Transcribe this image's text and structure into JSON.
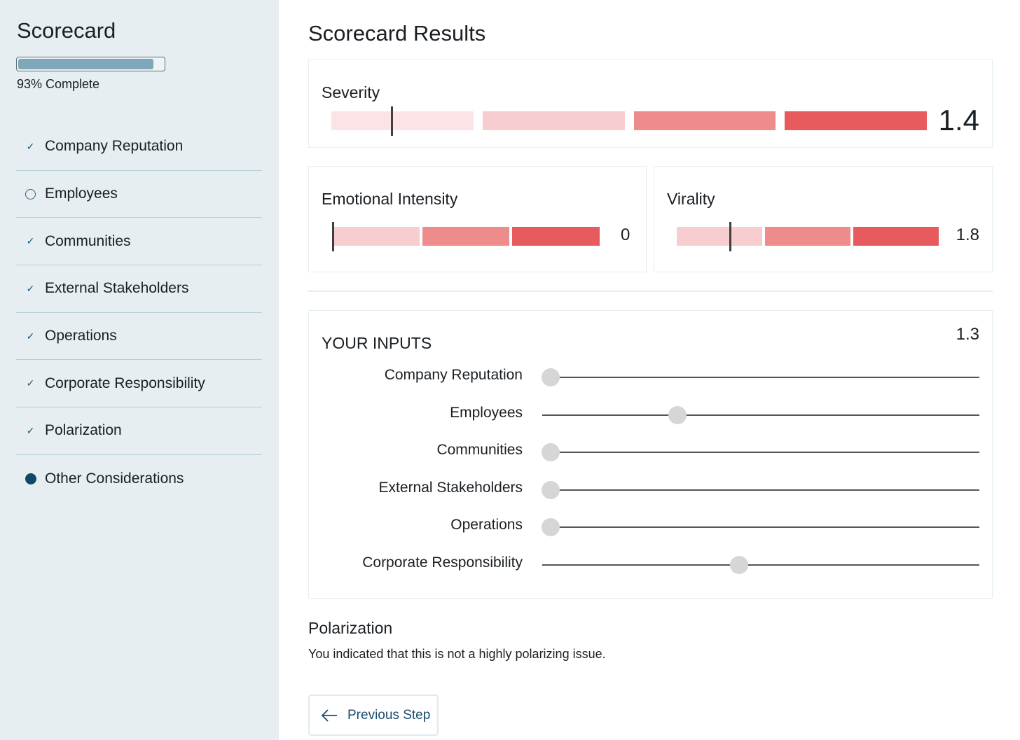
{
  "sidebar": {
    "title": "Scorecard",
    "progress_percent": 93,
    "progress_label": "93% Complete",
    "items": [
      {
        "label": "Company Reputation",
        "status": "done"
      },
      {
        "label": "Employees",
        "status": "incomplete"
      },
      {
        "label": "Communities",
        "status": "done"
      },
      {
        "label": "External Stakeholders",
        "status": "done"
      },
      {
        "label": "Operations",
        "status": "done"
      },
      {
        "label": "Corporate Responsibility",
        "status": "done"
      },
      {
        "label": "Polarization",
        "status": "done"
      },
      {
        "label": "Other Considerations",
        "status": "current"
      }
    ]
  },
  "main": {
    "title": "Scorecard Results",
    "severity": {
      "label": "Severity",
      "value": "1.4",
      "marker_percent": 10
    },
    "emotional_intensity": {
      "label": "Emotional Intensity",
      "value": "0",
      "marker_percent": 0
    },
    "virality": {
      "label": "Virality",
      "value": "1.8",
      "marker_percent": 20
    },
    "scale_colors": [
      "#fce4e6",
      "#f7cdd0",
      "#ee8c8c",
      "#e75b5e"
    ],
    "inputs": {
      "heading": "YOUR INPUTS",
      "value": "1.3",
      "sliders": [
        {
          "label": "Company Reputation",
          "percent": 2
        },
        {
          "label": "Employees",
          "percent": 31
        },
        {
          "label": "Communities",
          "percent": 2
        },
        {
          "label": "External Stakeholders",
          "percent": 2
        },
        {
          "label": "Operations",
          "percent": 2
        },
        {
          "label": "Corporate Responsibility",
          "percent": 45
        }
      ]
    },
    "polarization": {
      "title": "Polarization",
      "text": "You indicated that this is not a highly polarizing issue."
    },
    "previous_button": "Previous Step"
  }
}
